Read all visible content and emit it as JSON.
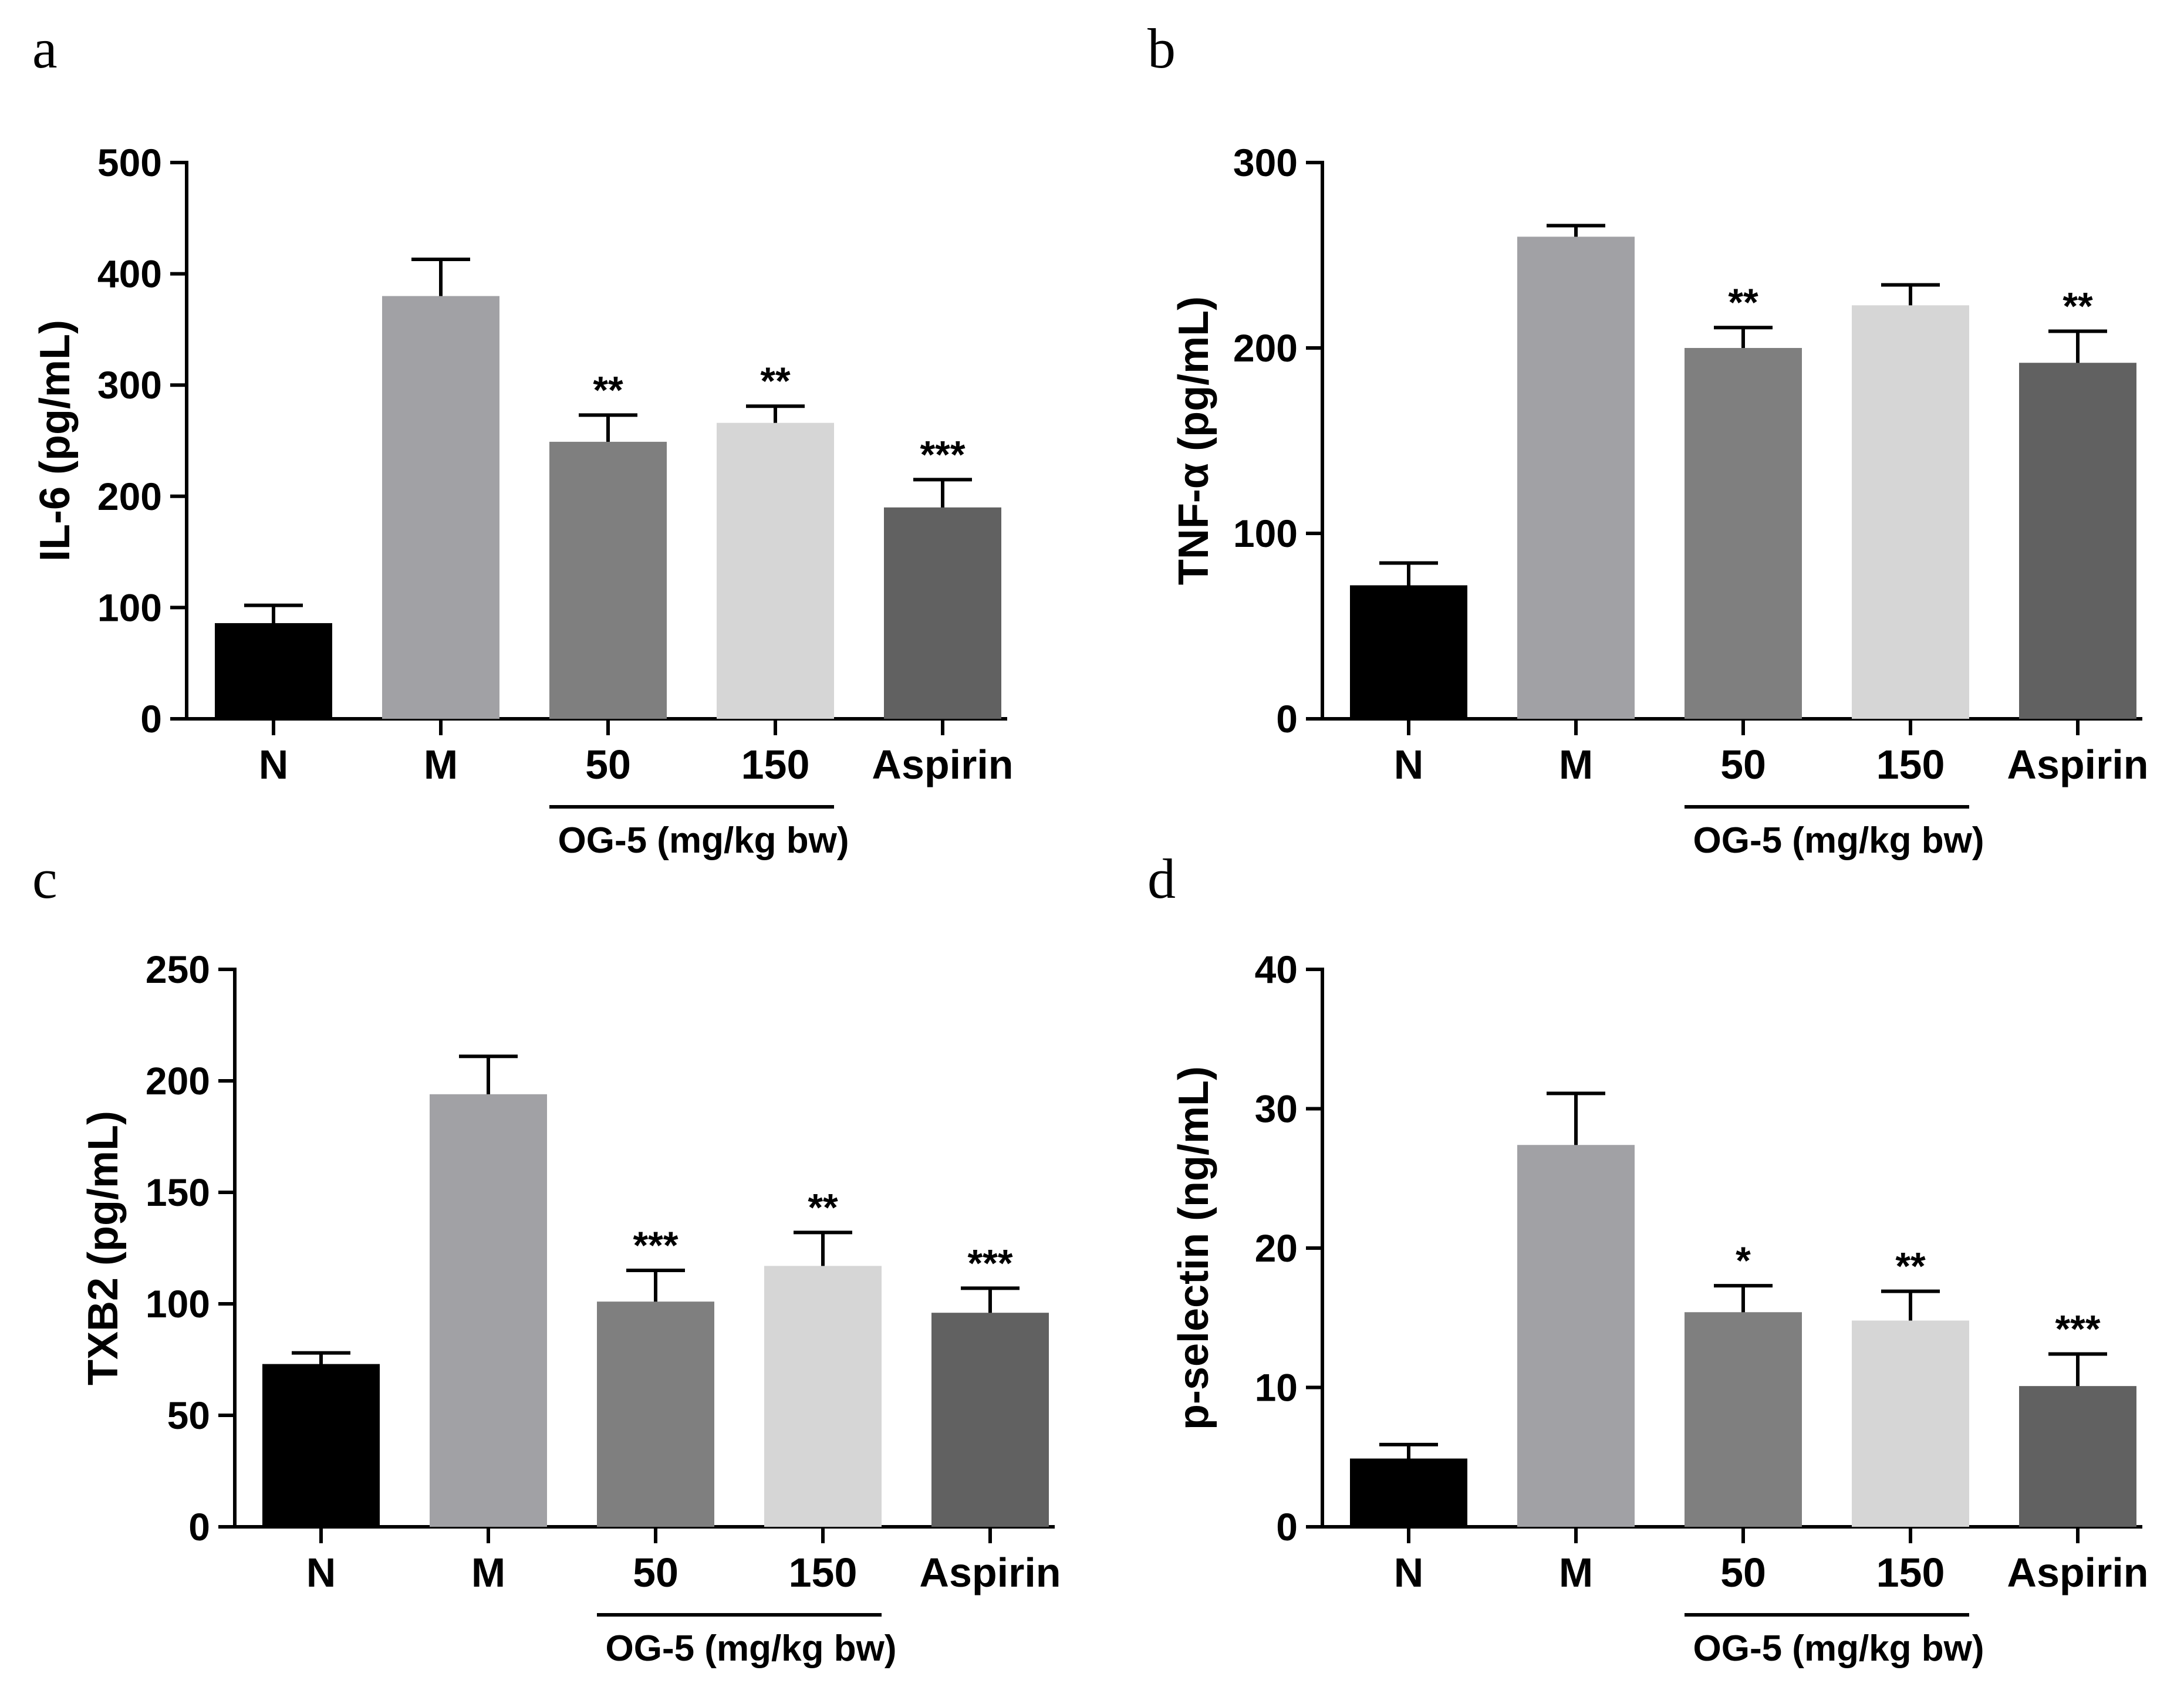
{
  "figure": {
    "group_line_label": "OG-5 (mg/kg bw)",
    "colors": {
      "N": "#000000",
      "M": "#a1a1a5",
      "50": "#7f7f7f",
      "150": "#d6d6d6",
      "Aspirin": "#616161",
      "axis": "#000000"
    }
  },
  "chart_data": [
    {
      "panel": "a",
      "type": "bar",
      "title": "",
      "xlabel": "",
      "ylabel": "IL-6 (pg/mL)",
      "ylim": [
        0,
        500
      ],
      "yticks": [
        0,
        100,
        200,
        300,
        400,
        500
      ],
      "categories": [
        "N",
        "M",
        "50",
        "150",
        "Aspirin"
      ],
      "values": [
        86,
        380,
        249,
        266,
        190
      ],
      "errors": [
        16,
        33,
        24,
        15,
        25
      ],
      "significance": [
        "",
        "",
        "**",
        "**",
        "***"
      ],
      "group": {
        "label": "OG-5 (mg/kg bw)",
        "categories": [
          "50",
          "150"
        ]
      }
    },
    {
      "panel": "b",
      "type": "bar",
      "title": "",
      "xlabel": "",
      "ylabel": "TNF-α (pg/mL)",
      "ylim": [
        0,
        300
      ],
      "yticks": [
        0,
        100,
        200,
        300
      ],
      "categories": [
        "N",
        "M",
        "50",
        "150",
        "Aspirin"
      ],
      "values": [
        72,
        260,
        200,
        223,
        192
      ],
      "errors": [
        12,
        6,
        11,
        11,
        17
      ],
      "significance": [
        "",
        "",
        "**",
        "",
        "**"
      ],
      "group": {
        "label": "OG-5 (mg/kg bw)",
        "categories": [
          "50",
          "150"
        ]
      }
    },
    {
      "panel": "c",
      "type": "bar",
      "title": "",
      "xlabel": "",
      "ylabel": "TXB2 (pg/mL)",
      "ylim": [
        0,
        250
      ],
      "yticks": [
        0,
        50,
        100,
        150,
        200,
        250
      ],
      "categories": [
        "N",
        "M",
        "50",
        "150",
        "Aspirin"
      ],
      "values": [
        73,
        194,
        101,
        117,
        96
      ],
      "errors": [
        5,
        17,
        14,
        15,
        11
      ],
      "significance": [
        "",
        "",
        "***",
        "**",
        "***"
      ],
      "group": {
        "label": "OG-5 (mg/kg bw)",
        "categories": [
          "50",
          "150"
        ]
      }
    },
    {
      "panel": "d",
      "type": "bar",
      "title": "",
      "xlabel": "",
      "ylabel": "p-selectin (ng/mL)",
      "ylim": [
        0,
        40
      ],
      "yticks": [
        0,
        10,
        20,
        30,
        40
      ],
      "categories": [
        "N",
        "M",
        "50",
        "150",
        "Aspirin"
      ],
      "values": [
        4.9,
        27.4,
        15.4,
        14.8,
        10.1
      ],
      "errors": [
        1.0,
        3.7,
        1.9,
        2.1,
        2.3
      ],
      "significance": [
        "",
        "",
        "*",
        "**",
        "***"
      ],
      "group": {
        "label": "OG-5 (mg/kg bw)",
        "categories": [
          "50",
          "150"
        ]
      }
    }
  ]
}
